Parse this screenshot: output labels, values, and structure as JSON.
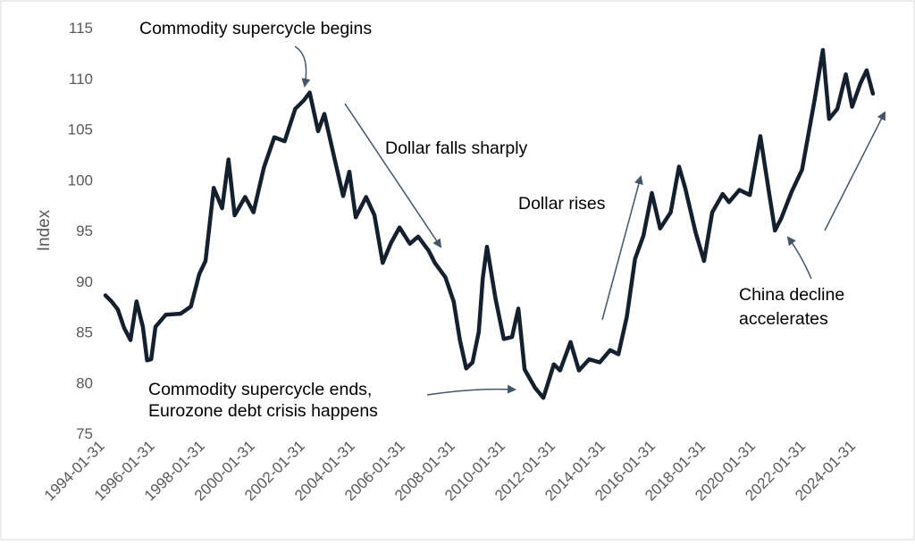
{
  "chart_data": {
    "type": "line",
    "title": "",
    "xlabel": "",
    "ylabel": "Index",
    "xlim": [
      "1994-01-31",
      "2024-12-31"
    ],
    "ylim": [
      75,
      115
    ],
    "yticks": [
      75,
      80,
      85,
      90,
      95,
      100,
      105,
      110,
      115
    ],
    "xticks": [
      "1994-01-31",
      "1996-01-31",
      "1998-01-31",
      "2000-01-31",
      "2002-01-31",
      "2004-01-31",
      "2006-01-31",
      "2008-01-31",
      "2010-01-31",
      "2012-01-31",
      "2014-01-31",
      "2016-01-31",
      "2018-01-31",
      "2020-01-31",
      "2022-01-31",
      "2024-01-31"
    ],
    "grid": false,
    "legend": "none",
    "line_color": "#15202e",
    "series": [
      {
        "name": "",
        "points": [
          [
            "1994-01-31",
            88.6
          ],
          [
            "1994-04-30",
            88.0
          ],
          [
            "1994-07-31",
            87.2
          ],
          [
            "1994-10-31",
            85.4
          ],
          [
            "1995-01-31",
            84.2
          ],
          [
            "1995-04-30",
            88.0
          ],
          [
            "1995-07-31",
            85.5
          ],
          [
            "1995-09-30",
            82.2
          ],
          [
            "1995-11-30",
            82.3
          ],
          [
            "1996-01-31",
            85.5
          ],
          [
            "1996-06-30",
            86.7
          ],
          [
            "1997-01-31",
            86.8
          ],
          [
            "1997-06-30",
            87.5
          ],
          [
            "1997-10-31",
            90.7
          ],
          [
            "1998-01-31",
            92.0
          ],
          [
            "1998-05-31",
            99.2
          ],
          [
            "1998-09-30",
            97.2
          ],
          [
            "1998-12-31",
            102.0
          ],
          [
            "1999-03-31",
            96.5
          ],
          [
            "1999-08-31",
            98.3
          ],
          [
            "1999-12-31",
            96.8
          ],
          [
            "2000-05-31",
            101.2
          ],
          [
            "2000-10-31",
            104.2
          ],
          [
            "2001-03-31",
            103.8
          ],
          [
            "2001-08-31",
            107.0
          ],
          [
            "2001-12-31",
            107.8
          ],
          [
            "2002-03-31",
            108.6
          ],
          [
            "2002-07-31",
            104.8
          ],
          [
            "2002-10-31",
            106.5
          ],
          [
            "2003-03-31",
            102.0
          ],
          [
            "2003-07-31",
            98.4
          ],
          [
            "2003-10-31",
            100.8
          ],
          [
            "2004-01-31",
            96.3
          ],
          [
            "2004-06-30",
            98.3
          ],
          [
            "2004-10-31",
            96.5
          ],
          [
            "2005-02-28",
            91.8
          ],
          [
            "2005-06-30",
            93.8
          ],
          [
            "2005-10-31",
            95.3
          ],
          [
            "2006-03-31",
            93.7
          ],
          [
            "2006-07-31",
            94.4
          ],
          [
            "2006-12-31",
            93.0
          ],
          [
            "2007-03-31",
            91.8
          ],
          [
            "2007-08-31",
            90.4
          ],
          [
            "2007-12-31",
            88.0
          ],
          [
            "2008-03-31",
            84.2
          ],
          [
            "2008-06-30",
            81.4
          ],
          [
            "2008-09-30",
            82.0
          ],
          [
            "2008-12-31",
            85.0
          ],
          [
            "2009-02-28",
            90.3
          ],
          [
            "2009-04-30",
            93.4
          ],
          [
            "2009-08-31",
            88.3
          ],
          [
            "2009-12-31",
            84.3
          ],
          [
            "2010-04-30",
            84.5
          ],
          [
            "2010-07-31",
            87.3
          ],
          [
            "2010-10-31",
            81.3
          ],
          [
            "2011-03-31",
            79.5
          ],
          [
            "2011-07-31",
            78.5
          ],
          [
            "2011-12-31",
            81.8
          ],
          [
            "2012-03-31",
            81.2
          ],
          [
            "2012-08-31",
            84.0
          ],
          [
            "2012-12-31",
            81.2
          ],
          [
            "2013-05-31",
            82.3
          ],
          [
            "2013-10-31",
            82.0
          ],
          [
            "2014-03-31",
            83.2
          ],
          [
            "2014-07-31",
            82.8
          ],
          [
            "2014-11-30",
            86.5
          ],
          [
            "2015-03-31",
            92.2
          ],
          [
            "2015-07-31",
            94.5
          ],
          [
            "2015-11-30",
            98.7
          ],
          [
            "2016-03-31",
            95.2
          ],
          [
            "2016-08-31",
            96.8
          ],
          [
            "2016-12-31",
            101.3
          ],
          [
            "2017-03-31",
            99.2
          ],
          [
            "2017-08-31",
            94.8
          ],
          [
            "2017-12-31",
            92.0
          ],
          [
            "2018-04-30",
            96.8
          ],
          [
            "2018-09-30",
            98.6
          ],
          [
            "2018-12-31",
            97.8
          ],
          [
            "2019-05-31",
            99.0
          ],
          [
            "2019-10-31",
            98.5
          ],
          [
            "2020-03-31",
            104.3
          ],
          [
            "2020-07-31",
            99.0
          ],
          [
            "2020-10-31",
            95.0
          ],
          [
            "2021-01-31",
            96.2
          ],
          [
            "2021-06-30",
            98.8
          ],
          [
            "2021-11-30",
            101.0
          ],
          [
            "2022-05-31",
            107.8
          ],
          [
            "2022-09-30",
            112.8
          ],
          [
            "2022-12-31",
            106.0
          ],
          [
            "2023-04-30",
            107.0
          ],
          [
            "2023-08-31",
            110.4
          ],
          [
            "2023-11-30",
            107.2
          ],
          [
            "2024-03-31",
            109.5
          ],
          [
            "2024-06-30",
            110.8
          ],
          [
            "2024-09-30",
            108.5
          ]
        ]
      }
    ],
    "annotations": [
      {
        "lines": [
          "Commodity supercycle begins"
        ],
        "arrow": "curved-down"
      },
      {
        "lines": [
          "Dollar falls sharply"
        ],
        "arrow": "diagonal-down"
      },
      {
        "lines": [
          "Dollar rises"
        ],
        "arrow": "diagonal-up"
      },
      {
        "lines": [
          "Commodity supercycle ends,",
          "Eurozone debt crisis happens"
        ],
        "arrow": "curved-right"
      },
      {
        "lines": [
          "China decline",
          "accelerates"
        ],
        "arrow": "curved-up"
      },
      {
        "lines": [],
        "arrow": "diagonal-up"
      }
    ]
  }
}
